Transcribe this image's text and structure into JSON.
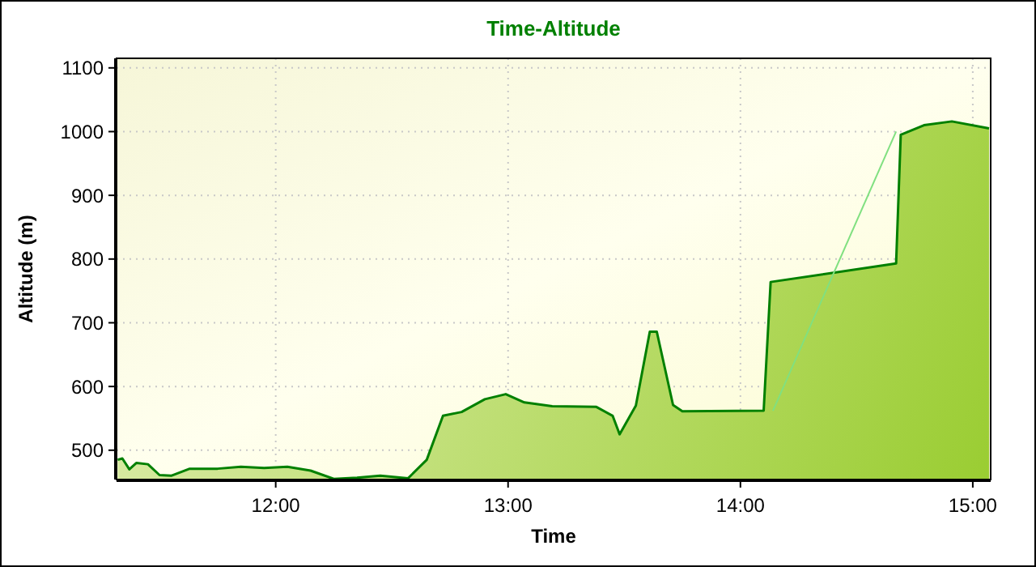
{
  "chart_data": {
    "type": "area",
    "title": "Time-Altitude",
    "xlabel": "Time",
    "ylabel": "Altitude (m)",
    "xlim": [
      11.315,
      15.077
    ],
    "xticks": [
      {
        "value": 12,
        "label": "12:00"
      },
      {
        "value": 13,
        "label": "13:00"
      },
      {
        "value": 14,
        "label": "14:00"
      },
      {
        "value": 15,
        "label": "15:00"
      }
    ],
    "ylim": [
      454,
      1115
    ],
    "yticks": [
      500,
      600,
      700,
      800,
      900,
      1000,
      1100
    ],
    "grid": true,
    "series": [
      {
        "color": "#008000",
        "x": [
          11.32,
          11.34,
          11.37,
          11.4,
          11.45,
          11.5,
          11.55,
          11.63,
          11.75,
          11.85,
          11.95,
          12.05,
          12.15,
          12.25,
          12.35,
          12.45,
          12.57,
          12.65,
          12.72,
          12.8,
          12.9,
          12.99,
          13.07,
          13.19,
          13.38,
          13.45,
          13.48,
          13.55,
          13.61,
          13.64,
          13.71,
          13.75,
          14.1,
          14.13,
          14.67,
          14.69,
          14.79,
          14.91,
          15.07
        ],
        "values": [
          485,
          487,
          470,
          480,
          478,
          461,
          460,
          471,
          471,
          474,
          472,
          474,
          468,
          455,
          457,
          460,
          456,
          485,
          554,
          560,
          580,
          588,
          575,
          569,
          568,
          554,
          525,
          570,
          686,
          686,
          571,
          561,
          562,
          764,
          793,
          995,
          1010,
          1016,
          1005
        ]
      },
      {
        "type": "line",
        "color": "#80e080",
        "x": [
          14.14,
          14.67
        ],
        "values": [
          562,
          1000
        ]
      }
    ]
  }
}
